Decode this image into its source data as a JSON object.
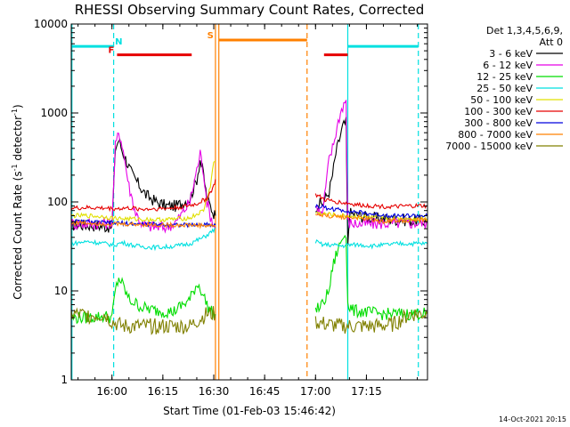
{
  "chart_data": {
    "type": "line",
    "title": "RHESSI Observing Summary Count Rates, Corrected",
    "xlabel": "Start Time (01-Feb-03 15:46:42)",
    "ylabel_main": "Corrected Count Rate (s",
    "ylabel_sup": "-1",
    "ylabel_mid": " detector",
    "ylabel_sup2": "-1",
    "ylabel_end": ")",
    "yscale": "log",
    "ylim": [
      1,
      10000
    ],
    "xlim_minutes": [
      15.0,
      120.0
    ],
    "x_ticks": [
      {
        "label": "16:00",
        "min": 27
      },
      {
        "label": "16:15",
        "min": 42
      },
      {
        "label": "16:30",
        "min": 57
      },
      {
        "label": "16:45",
        "min": 72
      },
      {
        "label": "17:00",
        "min": 87
      },
      {
        "label": "17:15",
        "min": 102
      }
    ],
    "y_ticks": [
      {
        "label": "1",
        "value": 1
      },
      {
        "label": "10",
        "value": 10
      },
      {
        "label": "100",
        "value": 100
      },
      {
        "label": "1000",
        "value": 1000
      },
      {
        "label": "10000",
        "value": 10000
      }
    ],
    "legend_header": [
      "Det 1,3,4,5,6,9,",
      "Att 0"
    ],
    "grid": false,
    "legend_position": "right",
    "series": [
      {
        "name": "3 - 6 keV",
        "color": "#000000",
        "points": [
          [
            15,
            55
          ],
          [
            20,
            55
          ],
          [
            25,
            53
          ],
          [
            27,
            52
          ],
          [
            28,
            400
          ],
          [
            29,
            500
          ],
          [
            30,
            380
          ],
          [
            33,
            200
          ],
          [
            37,
            120
          ],
          [
            40,
            100
          ],
          [
            43,
            90
          ],
          [
            46,
            90
          ],
          [
            50,
            110
          ],
          [
            52,
            180
          ],
          [
            53,
            300
          ],
          [
            54,
            200
          ],
          [
            55,
            110
          ],
          [
            56,
            90
          ],
          [
            57,
            75
          ],
          [
            57.5,
            70
          ],
          null,
          [
            87,
            90
          ],
          [
            88,
            95
          ],
          [
            89,
            95
          ],
          [
            91,
            130
          ],
          [
            92,
            200
          ],
          [
            93,
            350
          ],
          [
            94,
            500
          ],
          [
            95,
            700
          ],
          [
            96,
            780
          ],
          [
            96.5,
            30
          ],
          [
            97,
            75
          ],
          [
            100,
            70
          ],
          [
            105,
            65
          ],
          [
            110,
            64
          ],
          [
            115,
            62
          ],
          [
            118,
            61
          ],
          [
            120,
            60
          ]
        ]
      },
      {
        "name": "6 - 12 keV",
        "color": "#e600e6",
        "points": [
          [
            15,
            57
          ],
          [
            20,
            57
          ],
          [
            25,
            58
          ],
          [
            27,
            58
          ],
          [
            28,
            420
          ],
          [
            29,
            600
          ],
          [
            30,
            450
          ],
          [
            32,
            150
          ],
          [
            34,
            75
          ],
          [
            36,
            55
          ],
          [
            40,
            52
          ],
          [
            43,
            52
          ],
          [
            46,
            60
          ],
          [
            50,
            100
          ],
          [
            52,
            230
          ],
          [
            53,
            350
          ],
          [
            54,
            220
          ],
          [
            55,
            100
          ],
          [
            56,
            70
          ],
          [
            57,
            55
          ],
          [
            57.5,
            50
          ],
          null,
          [
            87,
            90
          ],
          [
            88,
            80
          ],
          [
            89,
            70
          ],
          [
            91,
            300
          ],
          [
            92,
            400
          ],
          [
            93,
            600
          ],
          [
            94,
            900
          ],
          [
            95,
            1200
          ],
          [
            96,
            1400
          ],
          [
            96.5,
            60
          ],
          [
            97,
            58
          ],
          [
            100,
            56
          ],
          [
            105,
            57
          ],
          [
            110,
            58
          ],
          [
            115,
            58
          ],
          [
            118,
            58
          ],
          [
            120,
            58
          ]
        ]
      },
      {
        "name": "12 - 25 keV",
        "color": "#00dd00",
        "points": [
          [
            15,
            5.0
          ],
          [
            20,
            5.0
          ],
          [
            25,
            5.2
          ],
          [
            27,
            5.0
          ],
          [
            28,
            10
          ],
          [
            29,
            14
          ],
          [
            30,
            12
          ],
          [
            32,
            8
          ],
          [
            36,
            6.5
          ],
          [
            40,
            6
          ],
          [
            45,
            5.8
          ],
          [
            50,
            8
          ],
          [
            52,
            12
          ],
          [
            53,
            11
          ],
          [
            55,
            7
          ],
          [
            56,
            6
          ],
          [
            57,
            5.5
          ],
          [
            57.5,
            5.5
          ],
          null,
          [
            87,
            6
          ],
          [
            89,
            7
          ],
          [
            91,
            10
          ],
          [
            92,
            18
          ],
          [
            93,
            25
          ],
          [
            95,
            40
          ],
          [
            96,
            45
          ],
          [
            96.5,
            7
          ],
          [
            98,
            6
          ],
          [
            102,
            5.8
          ],
          [
            106,
            5.5
          ],
          [
            110,
            5.5
          ],
          [
            115,
            5.5
          ],
          [
            118,
            5.6
          ],
          [
            120,
            5.6
          ]
        ]
      },
      {
        "name": "25 - 50 keV",
        "color": "#00e0e0",
        "points": [
          [
            15,
            34
          ],
          [
            20,
            36
          ],
          [
            25,
            34
          ],
          [
            27,
            33
          ],
          [
            28,
            33
          ],
          [
            30,
            35
          ],
          [
            34,
            32
          ],
          [
            38,
            31
          ],
          [
            42,
            31
          ],
          [
            46,
            32
          ],
          [
            50,
            34
          ],
          [
            54,
            40
          ],
          [
            57,
            48
          ],
          [
            57.5,
            50
          ],
          null,
          [
            87,
            36
          ],
          [
            89,
            33
          ],
          [
            91,
            33
          ],
          [
            95,
            32
          ],
          [
            96.5,
            33
          ],
          [
            100,
            33
          ],
          [
            104,
            32
          ],
          [
            108,
            33
          ],
          [
            112,
            34
          ],
          [
            116,
            34
          ],
          [
            120,
            34
          ]
        ]
      },
      {
        "name": "50 - 100 keV",
        "color": "#e0e000",
        "points": [
          [
            15,
            70
          ],
          [
            20,
            70
          ],
          [
            25,
            68
          ],
          [
            27,
            66
          ],
          [
            30,
            65
          ],
          [
            35,
            64
          ],
          [
            40,
            63
          ],
          [
            45,
            64
          ],
          [
            50,
            66
          ],
          [
            54,
            80
          ],
          [
            56,
            150
          ],
          [
            57,
            280
          ],
          [
            57.5,
            290
          ],
          null,
          [
            87,
            75
          ],
          [
            90,
            73
          ],
          [
            95,
            70
          ],
          [
            100,
            68
          ],
          [
            105,
            66
          ],
          [
            110,
            66
          ],
          [
            115,
            65
          ],
          [
            120,
            65
          ]
        ]
      },
      {
        "name": "100 - 300 keV",
        "color": "#e60000",
        "points": [
          [
            15,
            85
          ],
          [
            20,
            86
          ],
          [
            25,
            85
          ],
          [
            28,
            84
          ],
          [
            32,
            85
          ],
          [
            36,
            83
          ],
          [
            40,
            84
          ],
          [
            44,
            85
          ],
          [
            48,
            88
          ],
          [
            52,
            95
          ],
          [
            55,
            110
          ],
          [
            57,
            150
          ],
          [
            57.5,
            180
          ],
          null,
          [
            87,
            120
          ],
          [
            90,
            105
          ],
          [
            95,
            98
          ],
          [
            100,
            92
          ],
          [
            105,
            90
          ],
          [
            110,
            88
          ],
          [
            115,
            90
          ],
          [
            120,
            90
          ]
        ]
      },
      {
        "name": "300 - 800 keV",
        "color": "#0000dd",
        "points": [
          [
            15,
            60
          ],
          [
            20,
            60
          ],
          [
            25,
            58
          ],
          [
            28,
            58
          ],
          [
            32,
            57
          ],
          [
            36,
            56
          ],
          [
            40,
            56
          ],
          [
            44,
            56
          ],
          [
            48,
            55
          ],
          [
            52,
            55
          ],
          [
            55,
            56
          ],
          [
            57,
            55
          ],
          [
            57.5,
            55
          ],
          null,
          [
            87,
            90
          ],
          [
            90,
            86
          ],
          [
            93,
            82
          ],
          [
            96,
            80
          ],
          [
            100,
            76
          ],
          [
            105,
            72
          ],
          [
            110,
            70
          ],
          [
            115,
            70
          ],
          [
            120,
            70
          ]
        ]
      },
      {
        "name": "800 - 7000 keV",
        "color": "#ff8000",
        "points": [
          [
            15,
            58
          ],
          [
            20,
            58
          ],
          [
            25,
            57
          ],
          [
            30,
            56
          ],
          [
            35,
            56
          ],
          [
            40,
            55
          ],
          [
            45,
            55
          ],
          [
            50,
            55
          ],
          [
            55,
            54
          ],
          [
            57.5,
            54
          ],
          null,
          [
            87,
            72
          ],
          [
            90,
            70
          ],
          [
            95,
            68
          ],
          [
            100,
            66
          ],
          [
            104,
            63
          ],
          [
            106,
            60
          ],
          [
            110,
            62
          ],
          [
            115,
            62
          ],
          [
            120,
            62
          ]
        ]
      },
      {
        "name": "7000 - 15000 keV",
        "color": "#808000",
        "points": [
          [
            15,
            5.5
          ],
          [
            20,
            5.3
          ],
          [
            25,
            5.4
          ],
          [
            27,
            4.5
          ],
          [
            30,
            4.0
          ],
          [
            35,
            4.0
          ],
          [
            40,
            4.0
          ],
          [
            45,
            4.0
          ],
          [
            50,
            4.0
          ],
          [
            55,
            5.5
          ],
          [
            57.5,
            5.5
          ],
          null,
          [
            87,
            4.5
          ],
          [
            90,
            4.2
          ],
          [
            95,
            4.0
          ],
          [
            100,
            4.0
          ],
          [
            105,
            4.0
          ],
          [
            110,
            4.2
          ],
          [
            115,
            5.5
          ],
          [
            120,
            5.5
          ]
        ]
      }
    ],
    "vlines": [
      {
        "min": 15.2,
        "color": "#00e0e0",
        "style": "solid"
      },
      {
        "min": 27.5,
        "color": "#00e0e0",
        "style": "dashed"
      },
      {
        "min": 57.5,
        "color": "#ff8000",
        "style": "solid"
      },
      {
        "min": 58.5,
        "color": "#ff8000",
        "style": "solid"
      },
      {
        "min": 84.5,
        "color": "#ff8000",
        "style": "dashed"
      },
      {
        "min": 96.5,
        "color": "#00e0e0",
        "style": "solid"
      },
      {
        "min": 117.3,
        "color": "#00e0e0",
        "style": "dashed"
      }
    ],
    "flag_bars": [
      {
        "label": "N",
        "color": "#00e0e0",
        "level": 5600,
        "segments": [
          [
            15.2,
            27.5
          ],
          [
            96.5,
            117.3
          ]
        ],
        "label_min": 29.0
      },
      {
        "label": "F",
        "color": "#e60000",
        "level": 4500,
        "segments": [
          [
            28.5,
            50.5
          ],
          [
            89.5,
            96.5
          ]
        ],
        "label_min": 26.8
      },
      {
        "label": "S",
        "color": "#ff8000",
        "level": 6600,
        "segments": [
          [
            58.5,
            84.5
          ]
        ],
        "label_min": 56.0
      }
    ],
    "timestamp": "14-Oct-2021 20:15"
  }
}
